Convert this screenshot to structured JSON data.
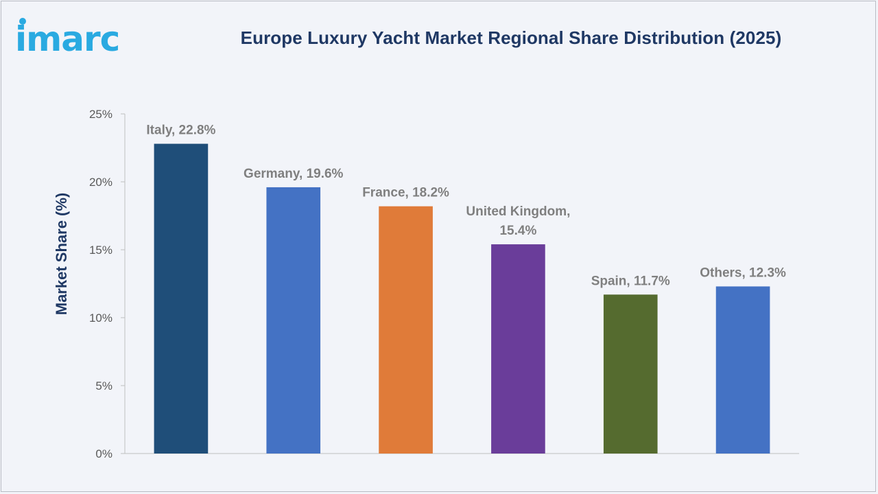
{
  "brand": {
    "name": "imarc",
    "color": "#2aaae1",
    "dot_color": "#2aaae1"
  },
  "chart_data": {
    "type": "bar",
    "title": "Europe Luxury Yacht Market Regional Share Distribution (2025)",
    "xlabel": "",
    "ylabel": "Market Share (%)",
    "ylim": [
      0,
      25
    ],
    "yticks": [
      0,
      5,
      10,
      15,
      20,
      25
    ],
    "ytick_labels": [
      "0%",
      "5%",
      "10%",
      "15%",
      "20%",
      "25%"
    ],
    "grid": false,
    "categories": [
      "Italy",
      "Germany",
      "France",
      "United Kingdom",
      "Spain",
      "Others"
    ],
    "values": [
      22.8,
      19.6,
      18.2,
      15.4,
      11.7,
      12.3
    ],
    "data_labels": [
      [
        "Italy, 22.8%"
      ],
      [
        "Germany, 19.6%"
      ],
      [
        "France, 18.2%"
      ],
      [
        "United Kingdom,",
        "15.4%"
      ],
      [
        "Spain, 11.7%"
      ],
      [
        "Others, 12.3%"
      ]
    ],
    "colors": [
      "#1f4e79",
      "#4472c4",
      "#e07b39",
      "#6a3d9a",
      "#556b2f",
      "#4472c4"
    ]
  }
}
